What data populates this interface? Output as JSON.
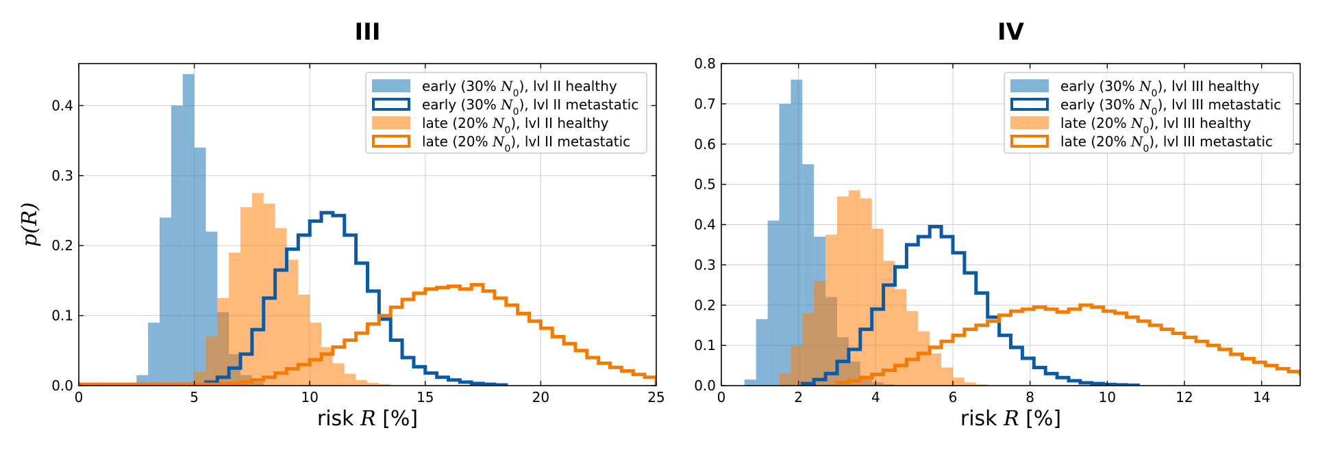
{
  "colors": {
    "blue_fill": "#1f77b4",
    "blue_step": "#0b5aa6",
    "orange_fill": "#ff7f0e",
    "orange_step": "#f57a00"
  },
  "chart_data": [
    {
      "type": "histogram",
      "title": "III",
      "xlabel": "risk R [%]",
      "ylabel": "p(R)",
      "xlim": [
        0,
        25
      ],
      "ylim": [
        0,
        0.46
      ],
      "xticks": [
        "0",
        "5",
        "10",
        "15",
        "20",
        "25"
      ],
      "yticks": [
        "0.0",
        "0.1",
        "0.2",
        "0.3",
        "0.4"
      ],
      "grid": true,
      "legend_position": "top-right",
      "series": [
        {
          "name": "early (30% N0), lvl II healthy",
          "label_prefix": "early (30% ",
          "label_suffix": "), lvl II healthy",
          "style": "filled",
          "color": "blue",
          "bin_start": 2.5,
          "bin_width": 0.5,
          "values": [
            0.015,
            0.09,
            0.24,
            0.4,
            0.445,
            0.34,
            0.22,
            0.105,
            0.045,
            0.015,
            0.005
          ]
        },
        {
          "name": "early (30% N0), lvl II metastatic",
          "label_prefix": "early (30% ",
          "label_suffix": "), lvl II metastatic",
          "style": "step",
          "color": "blue",
          "bin_start": 5.0,
          "bin_width": 0.5,
          "values": [
            0.002,
            0.005,
            0.012,
            0.025,
            0.045,
            0.08,
            0.125,
            0.165,
            0.195,
            0.215,
            0.235,
            0.247,
            0.243,
            0.215,
            0.175,
            0.135,
            0.095,
            0.065,
            0.04,
            0.027,
            0.018,
            0.012,
            0.008,
            0.005,
            0.003,
            0.002,
            0.001
          ]
        },
        {
          "name": "late (20% N0), lvl II healthy",
          "label_prefix": "late (20% ",
          "label_suffix": "), lvl II healthy",
          "style": "filled",
          "color": "orange",
          "bin_start": 5.0,
          "bin_width": 0.5,
          "values": [
            0.02,
            0.07,
            0.125,
            0.19,
            0.255,
            0.275,
            0.26,
            0.225,
            0.18,
            0.13,
            0.09,
            0.055,
            0.032,
            0.017,
            0.008,
            0.004,
            0.002
          ]
        },
        {
          "name": "late (20% N0), lvl II metastatic",
          "label_prefix": "late (20% ",
          "label_suffix": "), lvl II metastatic",
          "style": "step",
          "color": "orange",
          "bin_start": 0,
          "bin_width": 0.5,
          "values": [
            0.002,
            0.002,
            0.002,
            0.002,
            0.002,
            0.002,
            0.002,
            0.002,
            0.002,
            0.002,
            0.002,
            0.002,
            0.002,
            0.003,
            0.005,
            0.008,
            0.012,
            0.018,
            0.024,
            0.03,
            0.037,
            0.045,
            0.055,
            0.065,
            0.075,
            0.088,
            0.1,
            0.112,
            0.123,
            0.132,
            0.138,
            0.14,
            0.142,
            0.138,
            0.144,
            0.135,
            0.125,
            0.115,
            0.103,
            0.092,
            0.082,
            0.07,
            0.06,
            0.05,
            0.04,
            0.032,
            0.026,
            0.021,
            0.016,
            0.012
          ]
        }
      ]
    },
    {
      "type": "histogram",
      "title": "IV",
      "xlabel": "risk R [%]",
      "ylabel": "",
      "xlim": [
        0,
        15
      ],
      "ylim": [
        0,
        0.8
      ],
      "xticks": [
        "0",
        "2",
        "4",
        "6",
        "8",
        "10",
        "12",
        "14"
      ],
      "yticks": [
        "0.0",
        "0.1",
        "0.2",
        "0.3",
        "0.4",
        "0.5",
        "0.6",
        "0.7",
        "0.8"
      ],
      "grid": true,
      "legend_position": "top-right",
      "series": [
        {
          "name": "early (30% N0), lvl III healthy",
          "label_prefix": "early (30% ",
          "label_suffix": "), lvl III healthy",
          "style": "filled",
          "color": "blue",
          "bin_start": 0.6,
          "bin_width": 0.3,
          "values": [
            0.015,
            0.165,
            0.41,
            0.7,
            0.76,
            0.55,
            0.37,
            0.22,
            0.12,
            0.06,
            0.025,
            0.008,
            0.003
          ]
        },
        {
          "name": "early (30% N0), lvl III metastatic",
          "label_prefix": "early (30% ",
          "label_suffix": "), lvl III metastatic",
          "style": "step",
          "color": "blue",
          "bin_start": 2.1,
          "bin_width": 0.3,
          "values": [
            0.005,
            0.015,
            0.03,
            0.06,
            0.09,
            0.14,
            0.19,
            0.25,
            0.295,
            0.35,
            0.37,
            0.395,
            0.37,
            0.33,
            0.28,
            0.23,
            0.17,
            0.125,
            0.095,
            0.068,
            0.045,
            0.03,
            0.02,
            0.012,
            0.007,
            0.005,
            0.003,
            0.002,
            0.001
          ]
        },
        {
          "name": "late (20% N0), lvl III healthy",
          "label_prefix": "late (20% ",
          "label_suffix": "), lvl III healthy",
          "style": "filled",
          "color": "orange",
          "bin_start": 1.5,
          "bin_width": 0.3,
          "values": [
            0.03,
            0.1,
            0.18,
            0.26,
            0.375,
            0.47,
            0.485,
            0.465,
            0.39,
            0.31,
            0.24,
            0.185,
            0.135,
            0.08,
            0.045,
            0.02,
            0.008,
            0.003
          ]
        },
        {
          "name": "late (20% N0), lvl III metastatic",
          "label_prefix": "late (20% ",
          "label_suffix": "), lvl III metastatic",
          "style": "step",
          "color": "orange",
          "bin_start": 3.0,
          "bin_width": 0.3,
          "values": [
            0.008,
            0.012,
            0.02,
            0.028,
            0.038,
            0.05,
            0.065,
            0.08,
            0.095,
            0.11,
            0.125,
            0.14,
            0.15,
            0.16,
            0.175,
            0.185,
            0.19,
            0.195,
            0.19,
            0.183,
            0.19,
            0.2,
            0.195,
            0.185,
            0.18,
            0.17,
            0.16,
            0.15,
            0.14,
            0.13,
            0.12,
            0.11,
            0.1,
            0.09,
            0.078,
            0.067,
            0.058,
            0.05,
            0.042,
            0.035,
            0.029,
            0.023,
            0.018,
            0.013,
            0.01,
            0.008,
            0.006,
            0.004,
            0.003,
            0.002
          ]
        }
      ]
    }
  ]
}
